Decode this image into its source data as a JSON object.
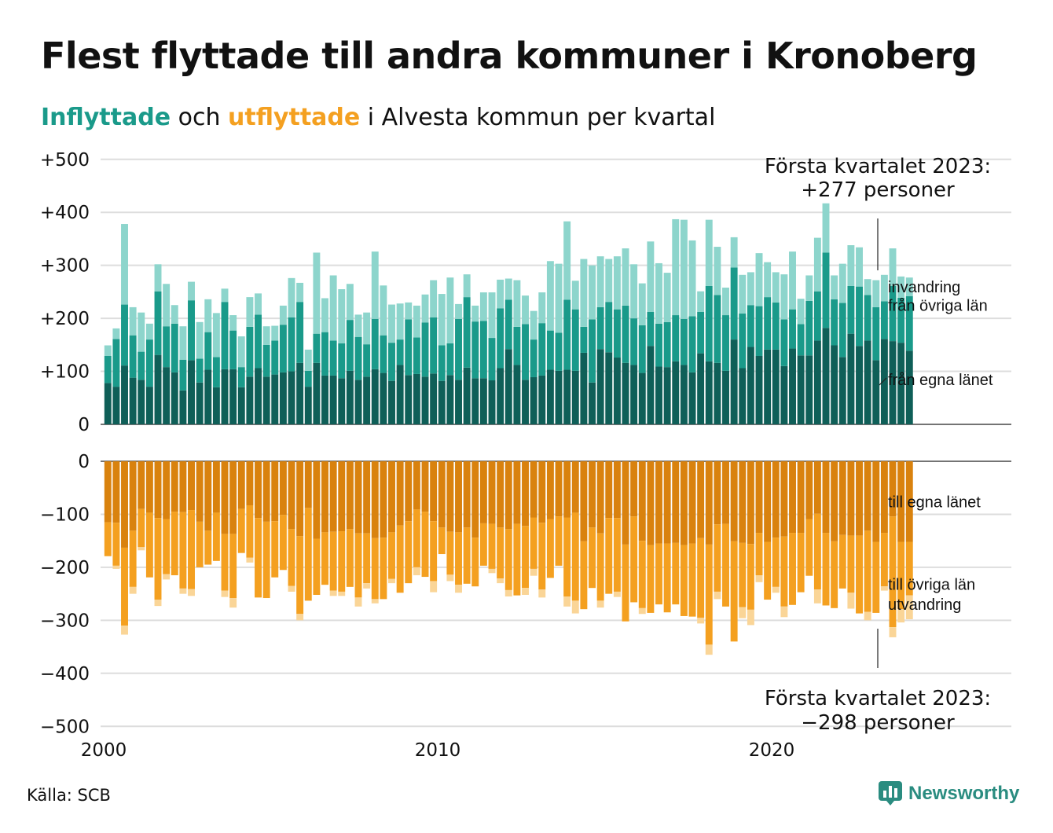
{
  "header": {
    "title": "Flest flyttade till andra kommuner i Kronoberg",
    "subtitle_in": "Inflyttade",
    "subtitle_mid": " och ",
    "subtitle_out": "utflyttade",
    "subtitle_rest": " i Alvesta kommun per kvartal"
  },
  "footer": {
    "source": "Källa: SCB",
    "brand": "Newsworthy"
  },
  "annotations": {
    "top_line1": "Första kvartalet 2023:",
    "top_line2": "+277 personer",
    "bottom_line1": "Första kvartalet 2023:",
    "bottom_line2": "−298 personer"
  },
  "colors": {
    "in_own": "#0f5f58",
    "in_other": "#1a9a8a",
    "in_immig": "#8dd5cc",
    "out_own": "#d9820e",
    "out_other": "#f4a020",
    "out_emig": "#fad597",
    "grid": "#dddddd",
    "axis": "#222222"
  },
  "chart_data": {
    "type": "bar",
    "stacked": true,
    "x_ticks": [
      "2000",
      "2010",
      "2020"
    ],
    "y_ticks_top": [
      "+500",
      "+400",
      "+300",
      "+200",
      "+100",
      "0"
    ],
    "y_ticks_bottom": [
      "0",
      "−100",
      "−200",
      "−300",
      "−400",
      "−500"
    ],
    "ylim_top": [
      0,
      500
    ],
    "ylim_bottom": [
      -500,
      0
    ],
    "grid": true,
    "quarters_start": "2000 Q1",
    "inflow_series": [
      {
        "name": "från egna länet",
        "values": [
          78,
          71,
          111,
          88,
          84,
          71,
          131,
          108,
          98,
          64,
          121,
          79,
          103,
          70,
          104,
          104,
          70,
          90,
          106,
          90,
          94,
          98,
          100,
          116,
          71,
          116,
          92,
          92,
          87,
          101,
          84,
          90,
          104,
          97,
          82,
          112,
          93,
          95,
          90,
          96,
          82,
          93,
          84,
          107,
          87,
          87,
          83,
          106,
          142,
          112,
          84,
          89,
          92,
          103,
          101,
          103,
          101,
          135,
          79,
          142,
          136,
          126,
          116,
          112,
          97,
          148,
          109,
          108,
          119,
          112,
          98,
          134,
          119,
          116,
          101,
          160,
          106,
          146,
          129,
          141,
          141,
          110,
          143,
          130,
          130,
          158,
          182,
          149,
          127,
          171,
          148,
          158,
          121,
          161,
          157,
          154,
          139
        ]
      },
      {
        "name": "från övriga län",
        "values": [
          51,
          90,
          115,
          80,
          53,
          89,
          120,
          77,
          92,
          58,
          113,
          45,
          71,
          57,
          127,
          73,
          38,
          94,
          101,
          60,
          64,
          90,
          102,
          115,
          30,
          55,
          82,
          66,
          66,
          96,
          81,
          61,
          95,
          71,
          72,
          48,
          105,
          69,
          102,
          106,
          67,
          60,
          115,
          133,
          107,
          108,
          80,
          113,
          93,
          72,
          105,
          71,
          99,
          74,
          72,
          132,
          116,
          49,
          119,
          79,
          95,
          91,
          108,
          88,
          90,
          64,
          81,
          85,
          87,
          87,
          106,
          78,
          142,
          128,
          105,
          136,
          103,
          79,
          94,
          99,
          89,
          88,
          74,
          59,
          103,
          93,
          142,
          87,
          102,
          90,
          112,
          86,
          100,
          71,
          104,
          85,
          103
        ]
      },
      {
        "name": "invandring",
        "values": [
          20,
          20,
          152,
          53,
          74,
          30,
          51,
          80,
          35,
          63,
          35,
          69,
          62,
          83,
          25,
          29,
          58,
          56,
          40,
          35,
          28,
          36,
          74,
          36,
          40,
          153,
          64,
          123,
          102,
          68,
          42,
          60,
          127,
          94,
          72,
          68,
          32,
          60,
          53,
          70,
          97,
          124,
          28,
          43,
          30,
          54,
          86,
          54,
          40,
          88,
          54,
          54,
          58,
          131,
          130,
          148,
          54,
          128,
          102,
          96,
          81,
          100,
          108,
          102,
          79,
          133,
          114,
          93,
          181,
          187,
          143,
          39,
          125,
          91,
          52,
          57,
          73,
          62,
          100,
          66,
          57,
          85,
          109,
          48,
          48,
          101,
          93,
          45,
          74,
          77,
          74,
          30,
          51,
          50,
          71,
          40,
          35
        ]
      }
    ],
    "outflow_series": [
      {
        "name": "till egna länet",
        "values": [
          115,
          116,
          163,
          131,
          90,
          97,
          107,
          109,
          95,
          96,
          92,
          114,
          131,
          97,
          137,
          137,
          90,
          83,
          107,
          114,
          113,
          101,
          128,
          141,
          88,
          146,
          134,
          133,
          132,
          128,
          136,
          136,
          145,
          144,
          134,
          121,
          113,
          91,
          95,
          113,
          125,
          133,
          134,
          125,
          144,
          117,
          118,
          125,
          128,
          118,
          122,
          106,
          116,
          109,
          104,
          106,
          97,
          151,
          125,
          136,
          107,
          107,
          157,
          104,
          150,
          158,
          155,
          155,
          154,
          158,
          155,
          145,
          157,
          119,
          118,
          151,
          154,
          156,
          135,
          152,
          144,
          142,
          135,
          135,
          109,
          99,
          135,
          151,
          139,
          140,
          140,
          131,
          152,
          135,
          104,
          152,
          152
        ]
      },
      {
        "name": "till övriga län",
        "values": [
          64,
          81,
          147,
          106,
          72,
          122,
          154,
          104,
          120,
          144,
          149,
          86,
          64,
          91,
          107,
          121,
          83,
          99,
          150,
          144,
          106,
          104,
          107,
          147,
          175,
          106,
          99,
          111,
          114,
          109,
          121,
          94,
          115,
          116,
          88,
          127,
          117,
          109,
          123,
          113,
          50,
          81,
          99,
          106,
          92,
          80,
          85,
          96,
          115,
          135,
          117,
          97,
          126,
          111,
          93,
          149,
          166,
          128,
          114,
          127,
          143,
          139,
          145,
          162,
          127,
          128,
          115,
          130,
          116,
          134,
          138,
          150,
          189,
          127,
          156,
          189,
          121,
          124,
          80,
          109,
          93,
          132,
          136,
          112,
          107,
          143,
          137,
          126,
          101,
          108,
          147,
          153,
          134,
          101,
          209,
          127,
          101
        ]
      },
      {
        "name": "utvandring",
        "values": [
          0,
          6,
          17,
          13,
          6,
          0,
          12,
          10,
          0,
          10,
          13,
          0,
          0,
          0,
          12,
          18,
          0,
          9,
          0,
          0,
          0,
          0,
          11,
          12,
          0,
          0,
          0,
          10,
          8,
          0,
          17,
          10,
          8,
          0,
          8,
          0,
          0,
          15,
          0,
          21,
          0,
          12,
          15,
          0,
          0,
          0,
          8,
          9,
          12,
          0,
          13,
          13,
          15,
          0,
          0,
          19,
          24,
          0,
          0,
          13,
          0,
          10,
          0,
          0,
          11,
          0,
          0,
          0,
          0,
          0,
          0,
          11,
          19,
          14,
          0,
          0,
          21,
          29,
          13,
          0,
          11,
          20,
          0,
          0,
          0,
          26,
          0,
          0,
          0,
          30,
          0,
          16,
          0,
          8,
          19,
          25,
          45
        ]
      }
    ],
    "inflow_latest": 277,
    "outflow_latest": -298
  }
}
